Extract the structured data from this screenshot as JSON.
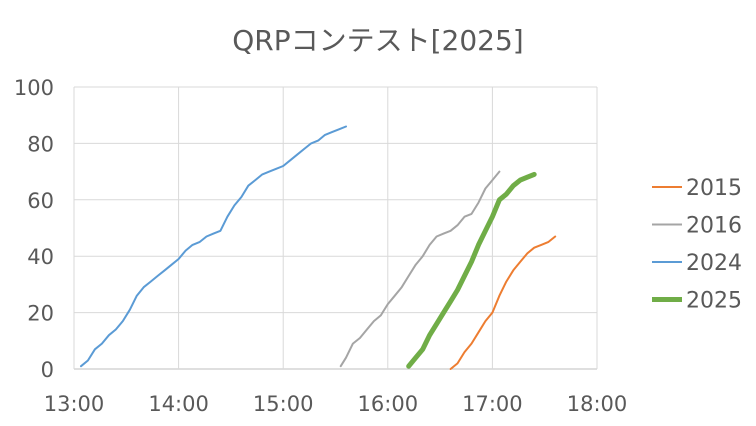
{
  "chart_data": {
    "type": "line",
    "title": "QRPコンテスト[2025]",
    "xlabel": "",
    "ylabel": "",
    "xlim": [
      "13:00",
      "18:00"
    ],
    "ylim": [
      0,
      100
    ],
    "x_ticks": [
      "13:00",
      "14:00",
      "15:00",
      "16:00",
      "17:00",
      "18:00"
    ],
    "y_ticks": [
      0,
      20,
      40,
      60,
      80,
      100
    ],
    "grid": true,
    "legend_position": "right",
    "series": [
      {
        "name": "2015",
        "color": "#ED7D31",
        "emphasis": false,
        "points": [
          [
            "16:36",
            0
          ],
          [
            "16:40",
            2
          ],
          [
            "16:44",
            6
          ],
          [
            "16:48",
            9
          ],
          [
            "16:52",
            13
          ],
          [
            "16:56",
            17
          ],
          [
            "17:00",
            20
          ],
          [
            "17:04",
            26
          ],
          [
            "17:08",
            31
          ],
          [
            "17:12",
            35
          ],
          [
            "17:16",
            38
          ],
          [
            "17:20",
            41
          ],
          [
            "17:24",
            43
          ],
          [
            "17:28",
            44
          ],
          [
            "17:32",
            45
          ],
          [
            "17:36",
            47
          ]
        ]
      },
      {
        "name": "2016",
        "color": "#A5A5A5",
        "emphasis": false,
        "points": [
          [
            "15:33",
            1
          ],
          [
            "15:36",
            4
          ],
          [
            "15:40",
            9
          ],
          [
            "15:44",
            11
          ],
          [
            "15:48",
            14
          ],
          [
            "15:52",
            17
          ],
          [
            "15:56",
            19
          ],
          [
            "16:00",
            23
          ],
          [
            "16:04",
            26
          ],
          [
            "16:08",
            29
          ],
          [
            "16:12",
            33
          ],
          [
            "16:16",
            37
          ],
          [
            "16:20",
            40
          ],
          [
            "16:24",
            44
          ],
          [
            "16:28",
            47
          ],
          [
            "16:32",
            48
          ],
          [
            "16:36",
            49
          ],
          [
            "16:40",
            51
          ],
          [
            "16:44",
            54
          ],
          [
            "16:48",
            55
          ],
          [
            "16:52",
            59
          ],
          [
            "16:56",
            64
          ],
          [
            "17:00",
            67
          ],
          [
            "17:04",
            70
          ]
        ]
      },
      {
        "name": "2024",
        "color": "#5B9BD5",
        "emphasis": false,
        "points": [
          [
            "13:04",
            1
          ],
          [
            "13:08",
            3
          ],
          [
            "13:12",
            7
          ],
          [
            "13:16",
            9
          ],
          [
            "13:20",
            12
          ],
          [
            "13:24",
            14
          ],
          [
            "13:28",
            17
          ],
          [
            "13:32",
            21
          ],
          [
            "13:36",
            26
          ],
          [
            "13:40",
            29
          ],
          [
            "13:44",
            31
          ],
          [
            "13:48",
            33
          ],
          [
            "13:52",
            35
          ],
          [
            "13:56",
            37
          ],
          [
            "14:00",
            39
          ],
          [
            "14:04",
            42
          ],
          [
            "14:08",
            44
          ],
          [
            "14:12",
            45
          ],
          [
            "14:16",
            47
          ],
          [
            "14:20",
            48
          ],
          [
            "14:24",
            49
          ],
          [
            "14:28",
            54
          ],
          [
            "14:32",
            58
          ],
          [
            "14:36",
            61
          ],
          [
            "14:40",
            65
          ],
          [
            "14:44",
            67
          ],
          [
            "14:48",
            69
          ],
          [
            "14:52",
            70
          ],
          [
            "14:56",
            71
          ],
          [
            "15:00",
            72
          ],
          [
            "15:04",
            74
          ],
          [
            "15:08",
            76
          ],
          [
            "15:12",
            78
          ],
          [
            "15:16",
            80
          ],
          [
            "15:20",
            81
          ],
          [
            "15:24",
            83
          ],
          [
            "15:28",
            84
          ],
          [
            "15:32",
            85
          ],
          [
            "15:36",
            86
          ]
        ]
      },
      {
        "name": "2025",
        "color": "#70AD47",
        "emphasis": true,
        "points": [
          [
            "16:12",
            1
          ],
          [
            "16:16",
            4
          ],
          [
            "16:20",
            7
          ],
          [
            "16:24",
            12
          ],
          [
            "16:28",
            16
          ],
          [
            "16:32",
            20
          ],
          [
            "16:36",
            24
          ],
          [
            "16:40",
            28
          ],
          [
            "16:44",
            33
          ],
          [
            "16:48",
            38
          ],
          [
            "16:52",
            44
          ],
          [
            "16:56",
            49
          ],
          [
            "17:00",
            54
          ],
          [
            "17:04",
            60
          ],
          [
            "17:08",
            62
          ],
          [
            "17:12",
            65
          ],
          [
            "17:16",
            67
          ],
          [
            "17:20",
            68
          ],
          [
            "17:24",
            69
          ]
        ]
      }
    ]
  }
}
